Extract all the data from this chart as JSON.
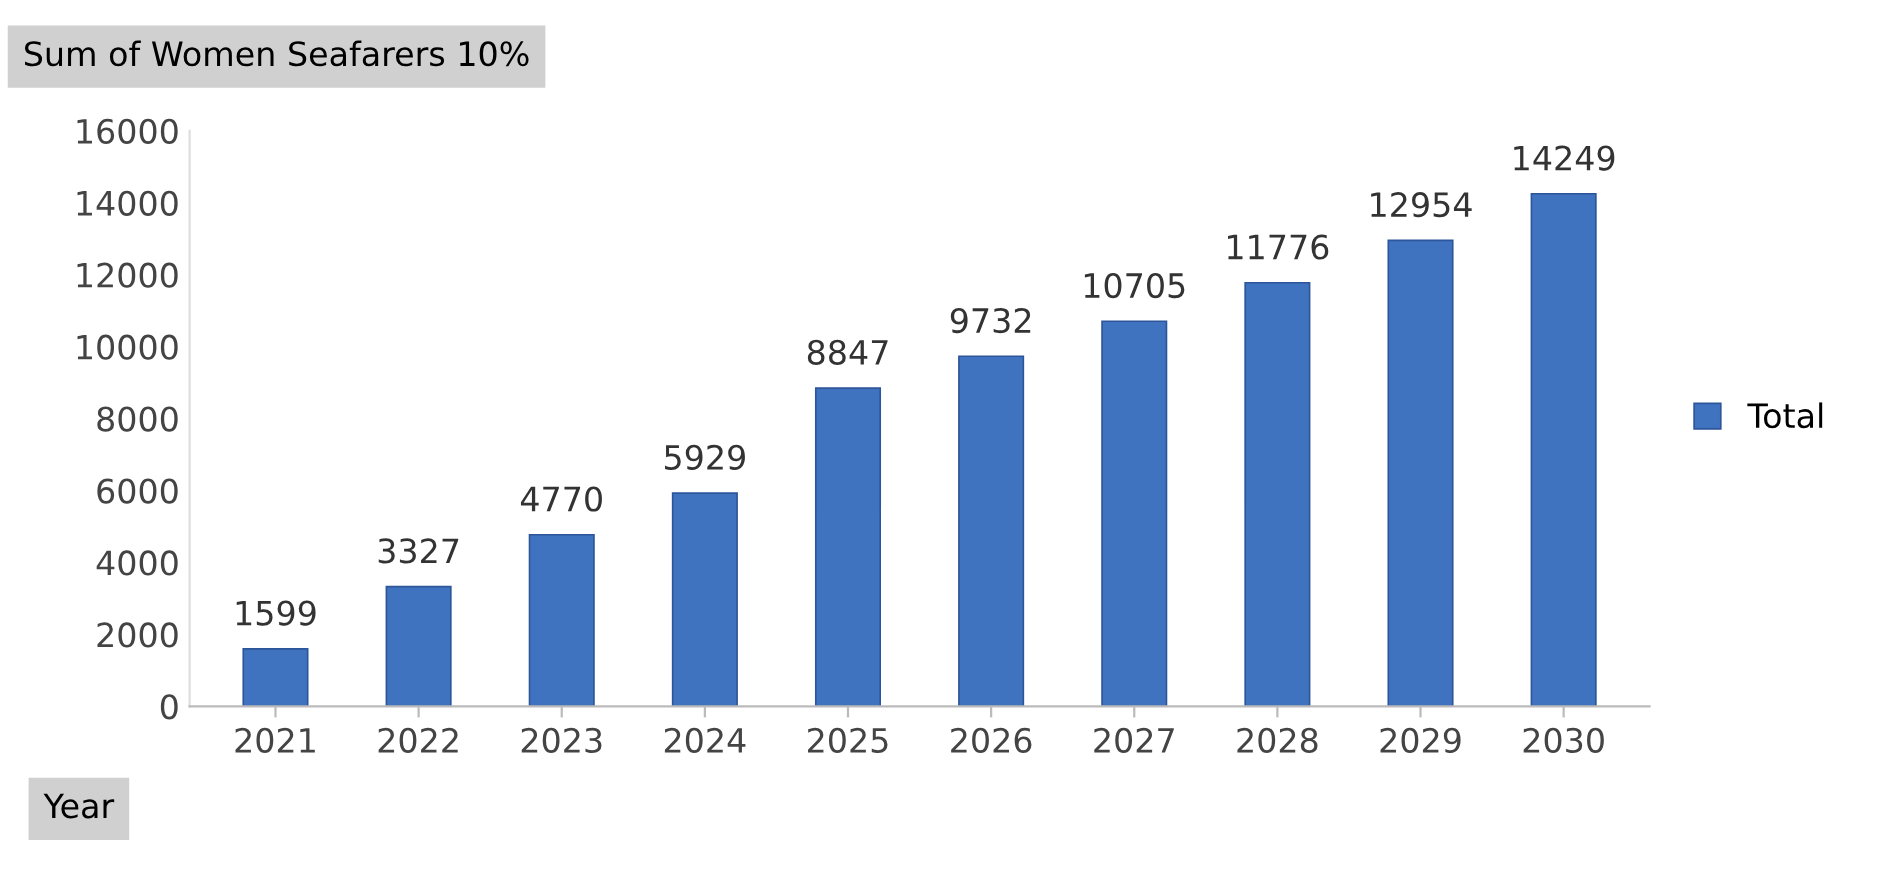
{
  "chart_data": {
    "type": "bar",
    "title": "Sum of Women Seafarers 10%",
    "xlabel": "Year",
    "categories": [
      "2021",
      "2022",
      "2023",
      "2024",
      "2025",
      "2026",
      "2027",
      "2028",
      "2029",
      "2030"
    ],
    "series": [
      {
        "name": "Total",
        "color": "#3f73c0",
        "values": [
          1599,
          3327,
          4770,
          5929,
          8847,
          9732,
          10705,
          11776,
          12954,
          14249
        ]
      }
    ],
    "ylim": [
      0,
      16000
    ],
    "yticks": [
      0,
      2000,
      4000,
      6000,
      8000,
      10000,
      12000,
      14000,
      16000
    ],
    "data_labels": true,
    "grid": false,
    "legend": "right"
  }
}
